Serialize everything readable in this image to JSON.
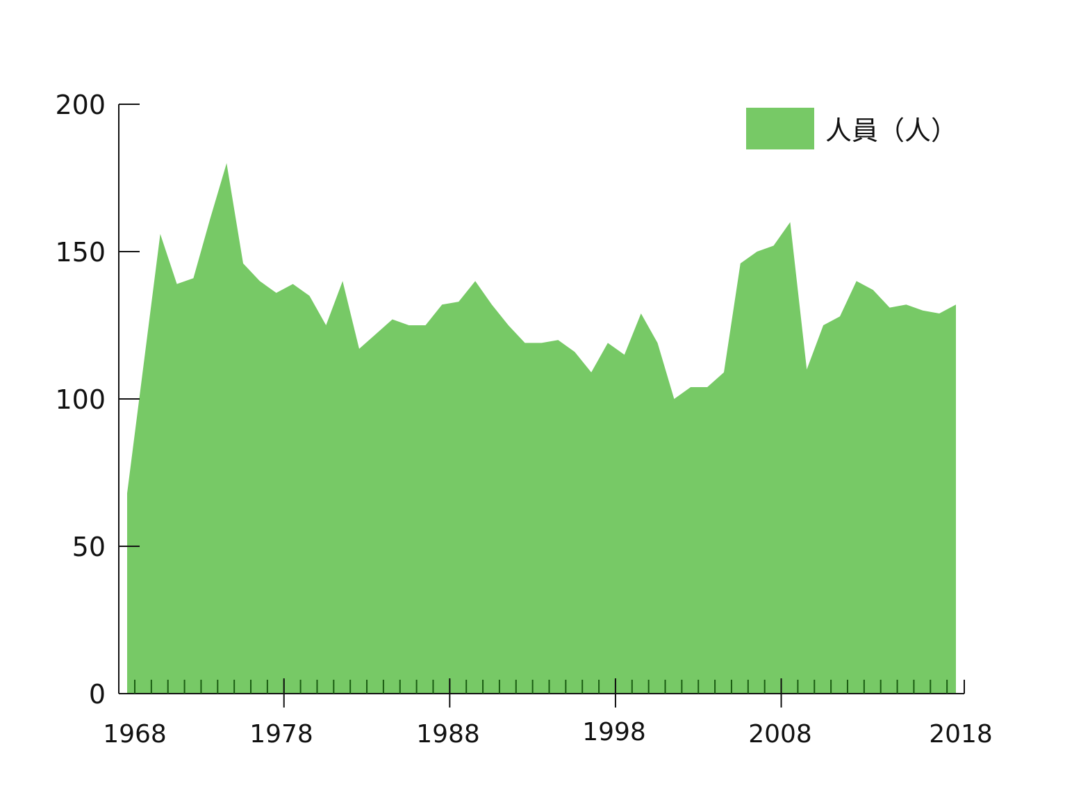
{
  "chart_data": {
    "type": "area",
    "title": "",
    "xlabel": "",
    "ylabel": "",
    "x": [
      1968,
      1969,
      1970,
      1971,
      1972,
      1973,
      1974,
      1975,
      1976,
      1977,
      1978,
      1979,
      1980,
      1981,
      1982,
      1983,
      1984,
      1985,
      1986,
      1987,
      1988,
      1989,
      1990,
      1991,
      1992,
      1993,
      1994,
      1995,
      1996,
      1997,
      1998,
      1999,
      2000,
      2001,
      2002,
      2003,
      2004,
      2005,
      2006,
      2007,
      2008,
      2009,
      2010,
      2011,
      2012,
      2013,
      2014,
      2015,
      2016,
      2017,
      2018
    ],
    "series": [
      {
        "name": "人員（人）",
        "color": "#77c966",
        "values": [
          68,
          112,
          156,
          139,
          141,
          161,
          180,
          146,
          140,
          136,
          139,
          135,
          125,
          140,
          117,
          122,
          127,
          125,
          125,
          132,
          133,
          140,
          132,
          125,
          119,
          119,
          120,
          116,
          109,
          119,
          115,
          129,
          119,
          100,
          104,
          104,
          109,
          146,
          150,
          152,
          160,
          110,
          125,
          128,
          140,
          137,
          131,
          132,
          130,
          129,
          132
        ]
      }
    ],
    "ylim": [
      0,
      200
    ],
    "xlim": [
      1968,
      2018
    ],
    "y_ticks": [
      "0",
      "50",
      "100",
      "150",
      "200"
    ],
    "x_ticks": [
      "1968",
      "1978",
      "1988",
      "1998",
      "2008",
      "2018"
    ],
    "grid": false,
    "legend": {
      "position": "top-right",
      "label": "人員（人）"
    }
  }
}
